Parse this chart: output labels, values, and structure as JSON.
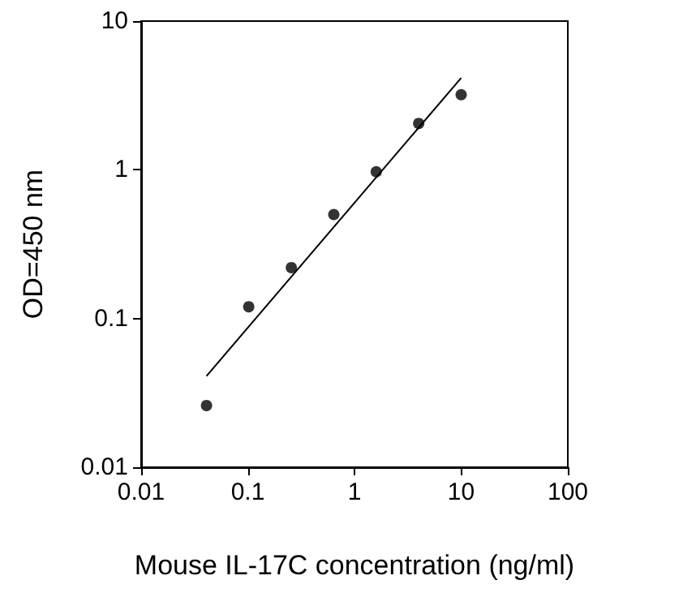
{
  "chart_data": {
    "type": "scatter",
    "xlabel": "Mouse IL-17C concentration (ng/ml)",
    "ylabel": "OD=450 nm",
    "log": "xy",
    "xlim": [
      0.01,
      100
    ],
    "ylim": [
      0.01,
      10
    ],
    "xticks": [
      0.01,
      0.1,
      1,
      10,
      100
    ],
    "yticks": [
      0.01,
      0.1,
      1,
      10
    ],
    "grid": false,
    "marker": "circle",
    "series": [
      {
        "color": "#000000",
        "x": [
          0.041,
          0.102,
          0.256,
          0.64,
          1.6,
          4,
          10
        ],
        "values": [
          0.026,
          0.12,
          0.22,
          0.5,
          0.97,
          2.05,
          3.2
        ]
      },
      {
        "type": "line",
        "color": "#000000",
        "marker": "none",
        "line_style": "solid",
        "x": [
          0.041,
          10
        ],
        "values": [
          0.041,
          4.15
        ]
      }
    ]
  }
}
